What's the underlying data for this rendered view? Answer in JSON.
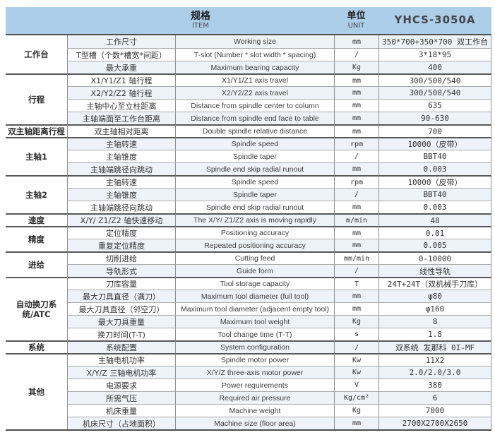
{
  "header": {
    "item_zh": "规格",
    "item_en": "ITEM",
    "unit_zh": "单位",
    "unit_en": "UNIT",
    "model": "YHCS-3050A"
  },
  "colors": {
    "header_bg": "#accee8",
    "stripe": "#eef3f9"
  },
  "groups": [
    {
      "category": "工作台",
      "rows": [
        {
          "item": "工作尺寸",
          "desc": "Working size",
          "unit": "mm",
          "value": "350*700+350*700 双工作台"
        },
        {
          "item": "T型槽（个数*槽宽*间距）",
          "desc": "T-slot (Number * slot width * spacing)",
          "unit": "/",
          "value": "3*18*95"
        },
        {
          "item": "最大承重",
          "desc": "Maximum bearing capacity",
          "unit": "Kg",
          "value": "400"
        }
      ]
    },
    {
      "category": "行程",
      "rows": [
        {
          "item": "X1/Y1/Z1 轴行程",
          "desc": "X1/Y1/Z1 axis travel",
          "unit": "mm",
          "value": "300/500/540"
        },
        {
          "item": "X2/Y2/Z2 轴行程",
          "desc": "X2/Y2/Z2 axis travel",
          "unit": "mm",
          "value": "300/500/540"
        },
        {
          "item": "主轴中心至立柱距离",
          "desc": "Distance from spindle center to column",
          "unit": "mm",
          "value": "635"
        },
        {
          "item": "主轴端面至工作台距离",
          "desc": "Distance from spindle end face to table",
          "unit": "mm",
          "value": "90-630"
        }
      ]
    },
    {
      "category": "双主轴距离行程",
      "rows": [
        {
          "item": "双主轴相对距离",
          "desc": "Double spindle relative distance",
          "unit": "mm",
          "value": "700"
        }
      ]
    },
    {
      "category": "主轴1",
      "rows": [
        {
          "item": "主轴转速",
          "desc": "Spindle speed",
          "unit": "rpm",
          "value": "10000（皮带）"
        },
        {
          "item": "主轴锥度",
          "desc": "Spindle taper",
          "unit": "/",
          "value": "BBT40"
        },
        {
          "item": "主轴端跳径向跳动",
          "desc": "Spindle end skip radial runout",
          "unit": "mm",
          "value": "0.003"
        }
      ]
    },
    {
      "category": "主轴2",
      "rows": [
        {
          "item": "主轴转速",
          "desc": "Spindle speed",
          "unit": "rpm",
          "value": "10000（皮带）"
        },
        {
          "item": "主轴锥度",
          "desc": "Spindle taper",
          "unit": "/",
          "value": "BBT40"
        },
        {
          "item": "主轴端跳径向跳动",
          "desc": "Spindle end skip radial runout",
          "unit": "mm",
          "value": "0.003"
        }
      ]
    },
    {
      "category": "速度",
      "rows": [
        {
          "item": "X/Y/ Z1/Z2 轴快速移动",
          "desc": "The X/Y/ Z1/Z2 axis is moving rapidly",
          "unit": "m/min",
          "value": "48"
        }
      ]
    },
    {
      "category": "精度",
      "rows": [
        {
          "item": "定位精度",
          "desc": "Positioning accuracy",
          "unit": "mm",
          "value": "0.01"
        },
        {
          "item": "重复定位精度",
          "desc": "Repeated positioning accuracy",
          "unit": "mm",
          "value": "0.005"
        }
      ]
    },
    {
      "category": "进给",
      "rows": [
        {
          "item": "切削进给",
          "desc": "Cutting feed",
          "unit": "mm/min",
          "value": "0-10000"
        },
        {
          "item": "导轨形式",
          "desc": "Guide form",
          "unit": "/",
          "value": "线性导轨"
        }
      ]
    },
    {
      "category": "自动换刀系统/ATC",
      "rows": [
        {
          "item": "刀库容量",
          "desc": "Tool storage capacity",
          "unit": "T",
          "value": "24T+24T（双机械手刀库）"
        },
        {
          "item": "最大刀具直径（满刀）",
          "desc": "Maximum tool diameter (full tool)",
          "unit": "mm",
          "value": "φ80"
        },
        {
          "item": "最大刀具直径（邻空刀）",
          "desc": "Maximum tool diameter (adjacent empty tool)",
          "unit": "mm",
          "value": "φ160"
        },
        {
          "item": "最大刀具重量",
          "desc": "Maximum tool weight",
          "unit": "Kg",
          "value": "8"
        },
        {
          "item": "换刀时间(T-T)",
          "desc": "Tool change time (T-T)",
          "unit": "s",
          "value": "1.8"
        }
      ]
    },
    {
      "category": "系统",
      "rows": [
        {
          "item": "系统配置",
          "desc": "System configuration",
          "unit": "/",
          "value": "双系统 发那科 0I-MF"
        }
      ]
    },
    {
      "category": "其他",
      "rows": [
        {
          "item": "主轴电机功率",
          "desc": "Spindle motor power",
          "unit": "Kw",
          "value": "11X2"
        },
        {
          "item": "X/Y/Z 三轴电机功率",
          "desc": "X/Y/Z three-axis motor power",
          "unit": "Kw",
          "value": "2.0/2.0/3.0"
        },
        {
          "item": "电源要求",
          "desc": "Power requirements",
          "unit": "V",
          "value": "380"
        },
        {
          "item": "所需气压",
          "desc": "Required air pressure",
          "unit": "Kg/cm²",
          "value": "6"
        },
        {
          "item": "机床重量",
          "desc": "Machine weight",
          "unit": "Kg",
          "value": "7000"
        },
        {
          "item": "机床尺寸（占地面积）",
          "desc": "Machine size (floor area)",
          "unit": "mm",
          "value": "2700X2700X2650"
        }
      ]
    }
  ]
}
